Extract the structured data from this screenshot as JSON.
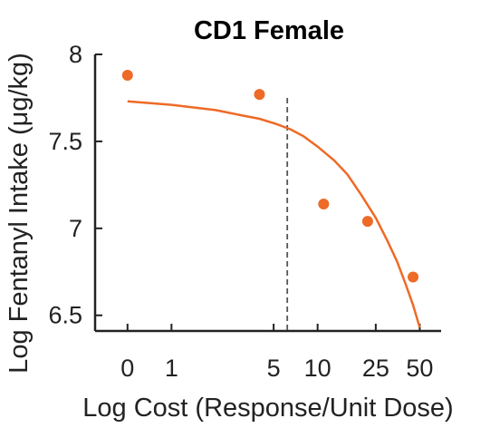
{
  "chart_data": {
    "type": "scatter",
    "title": "CD1 Female",
    "xlabel": "Log Cost (Response/Unit Dose)",
    "ylabel": "Log Fentanyl Intake (μg/kg)",
    "x_scale": "log",
    "x_ticks": [
      {
        "value": 0.5,
        "label": "0"
      },
      {
        "value": 1,
        "label": "1"
      },
      {
        "value": 5,
        "label": "5"
      },
      {
        "value": 10,
        "label": "10"
      },
      {
        "value": 25,
        "label": "25"
      },
      {
        "value": 50,
        "label": "50"
      }
    ],
    "xlim": [
      0.3,
      70
    ],
    "ylim": [
      6.41,
      8.0
    ],
    "y_ticks": [
      {
        "value": 6.5,
        "label": "6.5"
      },
      {
        "value": 7,
        "label": "7"
      },
      {
        "value": 7.5,
        "label": "7.5"
      },
      {
        "value": 8,
        "label": "8"
      }
    ],
    "points": [
      {
        "x": 0.5,
        "y": 7.88
      },
      {
        "x": 4,
        "y": 7.77
      },
      {
        "x": 11,
        "y": 7.14
      },
      {
        "x": 22,
        "y": 7.04
      },
      {
        "x": 45,
        "y": 6.72
      }
    ],
    "fit_curve": [
      {
        "x": 0.5,
        "y": 7.73
      },
      {
        "x": 1,
        "y": 7.71
      },
      {
        "x": 2,
        "y": 7.68
      },
      {
        "x": 3,
        "y": 7.65
      },
      {
        "x": 4,
        "y": 7.63
      },
      {
        "x": 5.2,
        "y": 7.6
      },
      {
        "x": 6.5,
        "y": 7.57
      },
      {
        "x": 8,
        "y": 7.53
      },
      {
        "x": 10,
        "y": 7.47
      },
      {
        "x": 13,
        "y": 7.39
      },
      {
        "x": 16,
        "y": 7.31
      },
      {
        "x": 20,
        "y": 7.19
      },
      {
        "x": 25,
        "y": 7.06
      },
      {
        "x": 30,
        "y": 6.93
      },
      {
        "x": 35,
        "y": 6.81
      },
      {
        "x": 40,
        "y": 6.68
      },
      {
        "x": 45,
        "y": 6.56
      },
      {
        "x": 50,
        "y": 6.43
      }
    ],
    "reference_line_x": 6.2,
    "colors": {
      "series": "#ee6a27",
      "axis": "#222222",
      "reference": "#555555"
    },
    "grid": false,
    "legend": "none"
  }
}
